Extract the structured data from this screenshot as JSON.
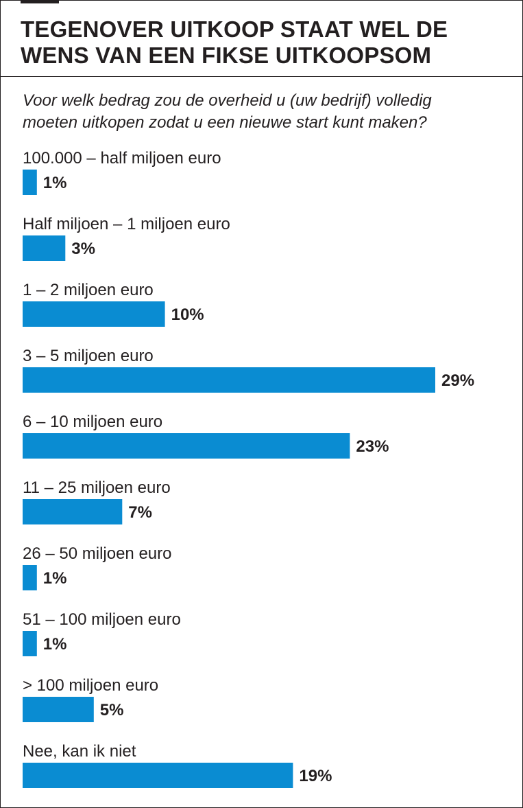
{
  "title_lines": [
    "Tegenover uitkoop staat wel de",
    "wens van een fikse uitkoopsom"
  ],
  "subtitle_lines": [
    "Voor welk bedrag zou de overheid u (uw bedrijf) volledig",
    "moeten uitkopen zodat u een nieuwe start kunt maken?"
  ],
  "colors": {
    "bar": "#0a8cd2",
    "text": "#231f20"
  },
  "chart_data": {
    "type": "bar",
    "orientation": "horizontal",
    "unit": "%",
    "xlim": [
      0,
      29
    ],
    "categories": [
      "100.000 – half miljoen euro",
      "Half miljoen – 1 miljoen euro",
      "1 – 2 miljoen euro",
      "3 – 5 miljoen euro",
      "6 – 10 miljoen euro",
      "11 – 25 miljoen euro",
      "26 – 50 miljoen euro",
      "51 – 100 miljoen euro",
      "> 100 miljoen euro",
      "Nee, kan ik niet"
    ],
    "values": [
      1,
      3,
      10,
      29,
      23,
      7,
      1,
      1,
      5,
      19
    ],
    "value_labels": [
      "1%",
      "3%",
      "10%",
      "29%",
      "23%",
      "7%",
      "1%",
      "1%",
      "5%",
      "19%"
    ]
  }
}
